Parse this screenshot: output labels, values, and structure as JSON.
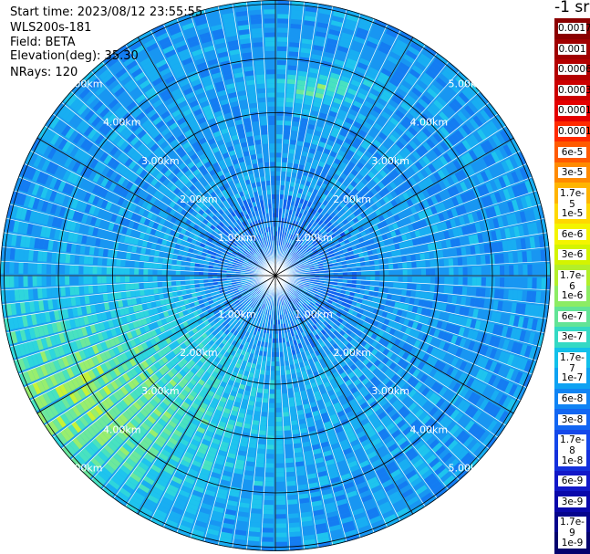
{
  "header": {
    "start_time": "Start time: 2023/08/12 23:55:55",
    "instrument": "WLS200s-181",
    "field": "Field: BETA",
    "elevation": "Elevation(deg): 35.30",
    "nrays": "NRays: 120"
  },
  "chart_data": {
    "type": "heatmap",
    "projection": "polar",
    "nrays": 120,
    "elevation_deg": 35.3,
    "field": "BETA",
    "range_rings": [
      "1.00km",
      "2.00km",
      "3.00km",
      "4.00km",
      "5.00km"
    ],
    "colorbar_title": "-1 sr",
    "colorbar_ticks": [
      "0.0017",
      "0.001",
      "0.0006",
      "0.0003",
      "0.00017",
      "0.0001",
      "6e-5",
      "3e-5",
      "1.7e-5",
      "1e-5",
      "6e-6",
      "3e-6",
      "1.7e-6",
      "1e-6",
      "6e-7",
      "3e-7",
      "1.7e-7",
      "1e-7",
      "6e-8",
      "3e-8",
      "1.7e-8",
      "1e-8",
      "6e-9",
      "3e-9",
      "1.7e-9",
      "1e-9"
    ],
    "colorbar_colors": [
      "#8b0000",
      "#a00000",
      "#b40000",
      "#cc0000",
      "#e40000",
      "#ff2a00",
      "#ff5a00",
      "#ff8a00",
      "#ffb400",
      "#ffd800",
      "#f4f400",
      "#d4f400",
      "#b2ef2a",
      "#8cec64",
      "#62e496",
      "#34d9c4",
      "#12c0ea",
      "#0ea2f2",
      "#1084f4",
      "#1266f2",
      "#1448ea",
      "#1430dc",
      "#1218c8",
      "#0a08aa",
      "#06048c",
      "#04026e"
    ]
  }
}
